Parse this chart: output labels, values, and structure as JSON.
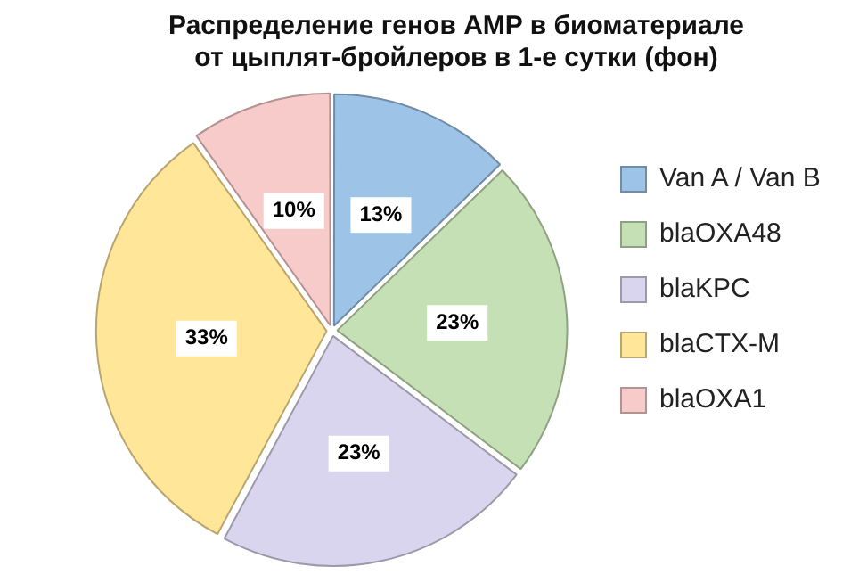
{
  "chart_data": {
    "type": "pie",
    "title": "Распределение генов AMP в биоматериале\nот цыплят-бройлеров в 1-е сутки (фон)",
    "categories": [
      "Van A / Van B",
      "blaOXA48",
      "blaKPC",
      "blaCTX-M",
      "blaOXA1"
    ],
    "values": [
      13,
      23,
      23,
      33,
      10
    ],
    "value_labels": [
      "13%",
      "23%",
      "23%",
      "33%",
      "10%"
    ],
    "colors": [
      "#9dc3e6",
      "#c5e0b4",
      "#d9d5ee",
      "#ffe699",
      "#f8cbcb"
    ],
    "legend": "right"
  }
}
